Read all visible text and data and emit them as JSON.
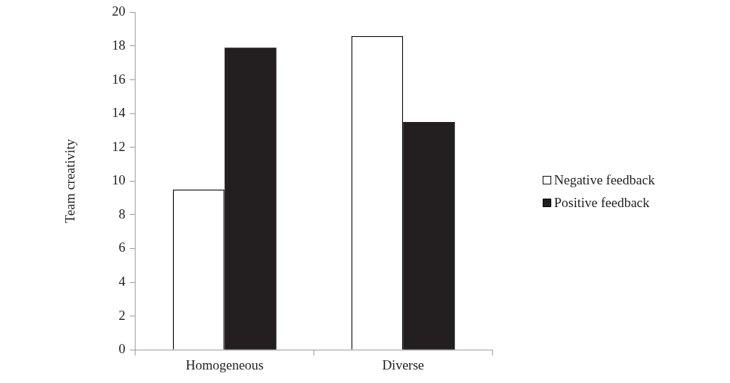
{
  "chart_data": {
    "type": "bar",
    "ylabel": "Team creativity",
    "categories": [
      "Homogeneous",
      "Diverse"
    ],
    "series": [
      {
        "name": "Negative feedback",
        "color": "#ffffff",
        "values": [
          9.5,
          18.6
        ]
      },
      {
        "name": "Positive feedback",
        "color": "#231f20",
        "values": [
          17.9,
          13.5
        ]
      }
    ],
    "ylim": [
      0,
      20
    ],
    "yticks": [
      0,
      2,
      4,
      6,
      8,
      10,
      12,
      14,
      16,
      18,
      20
    ],
    "grid": false,
    "legend": "right"
  }
}
